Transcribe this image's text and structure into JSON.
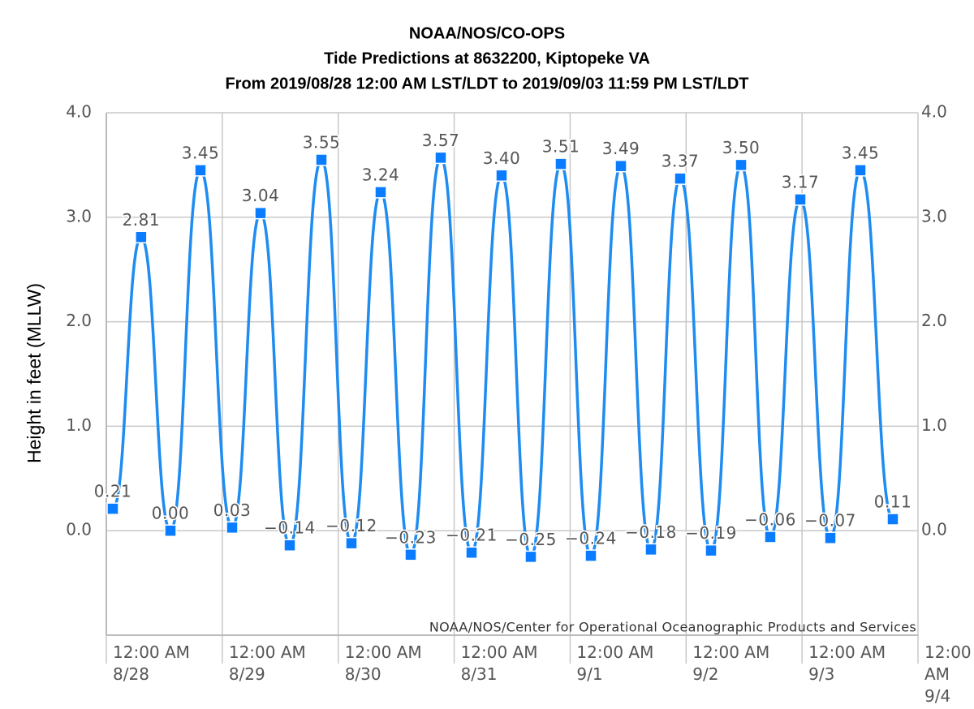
{
  "chart_data": {
    "type": "line",
    "title": [
      "NOAA/NOS/CO-OPS",
      "Tide Predictions at 8632200, Kiptopeke VA",
      "From 2019/08/28 12:00 AM LST/LDT to 2019/09/03 11:59 PM LST/LDT"
    ],
    "y_label": "Height in feet (MLLW)",
    "credit": "NOAA/NOS/Center for Operational Oceanographic Products and Services",
    "xlim": [
      0,
      7
    ],
    "xticks": [
      {
        "value": 0,
        "label": "12:00 AM\n8/28"
      },
      {
        "value": 1,
        "label": "12:00 AM\n8/29"
      },
      {
        "value": 2,
        "label": "12:00 AM\n8/30"
      },
      {
        "value": 3,
        "label": "12:00 AM\n8/31"
      },
      {
        "value": 4,
        "label": "12:00 AM\n9/1"
      },
      {
        "value": 5,
        "label": "12:00 AM\n9/2"
      },
      {
        "value": 6,
        "label": "12:00 AM\n9/3"
      },
      {
        "value": 7,
        "label": "12:00 AM\n9/4"
      }
    ],
    "ylim": [
      -1,
      4
    ],
    "yticks": [
      {
        "value": 0,
        "label": "0.0"
      },
      {
        "value": 1,
        "label": "1.0"
      },
      {
        "value": 2,
        "label": "2.0"
      },
      {
        "value": 3,
        "label": "3.0"
      },
      {
        "value": 4,
        "label": "4.0"
      }
    ],
    "grid": true,
    "series": [
      {
        "color": "#1e8cf0",
        "marker_color": "#0a7cff",
        "x": [
          0.056,
          0.3,
          0.553,
          0.812,
          1.085,
          1.33,
          1.582,
          1.855,
          2.114,
          2.366,
          2.625,
          2.884,
          3.15,
          3.409,
          3.661,
          3.92,
          4.179,
          4.438,
          4.697,
          4.949,
          5.215,
          5.474,
          5.726,
          5.985,
          6.244,
          6.503,
          6.783
        ],
        "values": [
          0.21,
          2.81,
          0.0,
          3.45,
          0.03,
          3.04,
          -0.14,
          3.55,
          -0.12,
          3.24,
          -0.23,
          3.57,
          -0.21,
          3.4,
          -0.25,
          3.51,
          -0.24,
          3.49,
          -0.18,
          3.37,
          -0.19,
          3.5,
          -0.06,
          3.17,
          -0.07,
          3.45,
          0.11
        ],
        "value_labels": [
          "0.21",
          "2.81",
          "0.00",
          "3.45",
          "0.03",
          "3.04",
          "−0.14",
          "3.55",
          "−0.12",
          "3.24",
          "−0.23",
          "3.57",
          "−0.21",
          "3.40",
          "−0.25",
          "3.51",
          "−0.24",
          "3.49",
          "−0.18",
          "3.37",
          "−0.19",
          "3.50",
          "−0.06",
          "3.17",
          "−0.07",
          "3.45",
          "0.11"
        ]
      }
    ]
  }
}
